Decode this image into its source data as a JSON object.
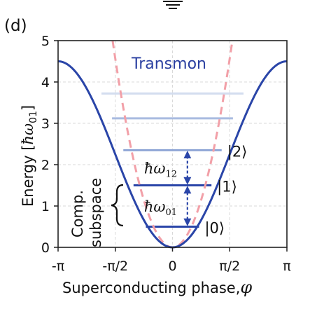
{
  "panel_label": "(d)",
  "chart_data": {
    "type": "line",
    "title": "Transmon",
    "xlabel": "Superconducting phase,",
    "xlabel_symbol": "φ",
    "ylabel": "Energy [",
    "ylabel_unit": "ħω",
    "ylabel_unit_sub": "01",
    "ylabel_close": "]",
    "xlim": [
      -3.1416,
      3.1416
    ],
    "ylim": [
      0,
      5
    ],
    "grid": true,
    "x_ticks": [
      {
        "value": -3.1416,
        "label": "-π"
      },
      {
        "value": -1.5708,
        "label": "-π/2"
      },
      {
        "value": 0,
        "label": "0"
      },
      {
        "value": 1.5708,
        "label": "π/2"
      },
      {
        "value": 3.1416,
        "label": "π"
      }
    ],
    "y_ticks": [
      {
        "value": 0,
        "label": "0"
      },
      {
        "value": 1,
        "label": "1"
      },
      {
        "value": 2,
        "label": "2"
      },
      {
        "value": 3,
        "label": "3"
      },
      {
        "value": 4,
        "label": "4"
      },
      {
        "value": 5,
        "label": "5"
      }
    ],
    "potential": {
      "form": "cosine",
      "max": 4.5,
      "color": "#2a45a8"
    },
    "harmonic": {
      "form": "parabola",
      "curvature": 1.85,
      "color": "#f2a0a8"
    },
    "levels": [
      {
        "energy": 0.5,
        "x_min": -0.73,
        "x_max": 0.73,
        "color": "#2a45a8",
        "label": "|0⟩",
        "label_color": "#111111"
      },
      {
        "energy": 1.5,
        "x_min": -1.07,
        "x_max": 1.07,
        "color": "#2a45a8",
        "label": "|1⟩",
        "label_color": "#111111"
      },
      {
        "energy": 2.35,
        "x_min": -1.35,
        "x_max": 1.35,
        "color": "#8fa6d6",
        "label": "|2⟩",
        "label_color": "#999999"
      },
      {
        "energy": 3.12,
        "x_min": -1.66,
        "x_max": 1.66,
        "color": "#a9bbe0",
        "label": "",
        "label_color": "#999999"
      },
      {
        "energy": 3.72,
        "x_min": -1.95,
        "x_max": 1.95,
        "color": "#d3ddef",
        "label": "",
        "label_color": "#999999"
      }
    ],
    "annotations": [
      {
        "from": 0.5,
        "to": 1.5,
        "x": 0.41,
        "label": "ħω",
        "sub": "01"
      },
      {
        "from": 1.5,
        "to": 2.35,
        "x": 0.41,
        "label": "ħω",
        "sub": "12"
      }
    ],
    "brace_label": [
      "Comp.",
      "subspace"
    ]
  }
}
